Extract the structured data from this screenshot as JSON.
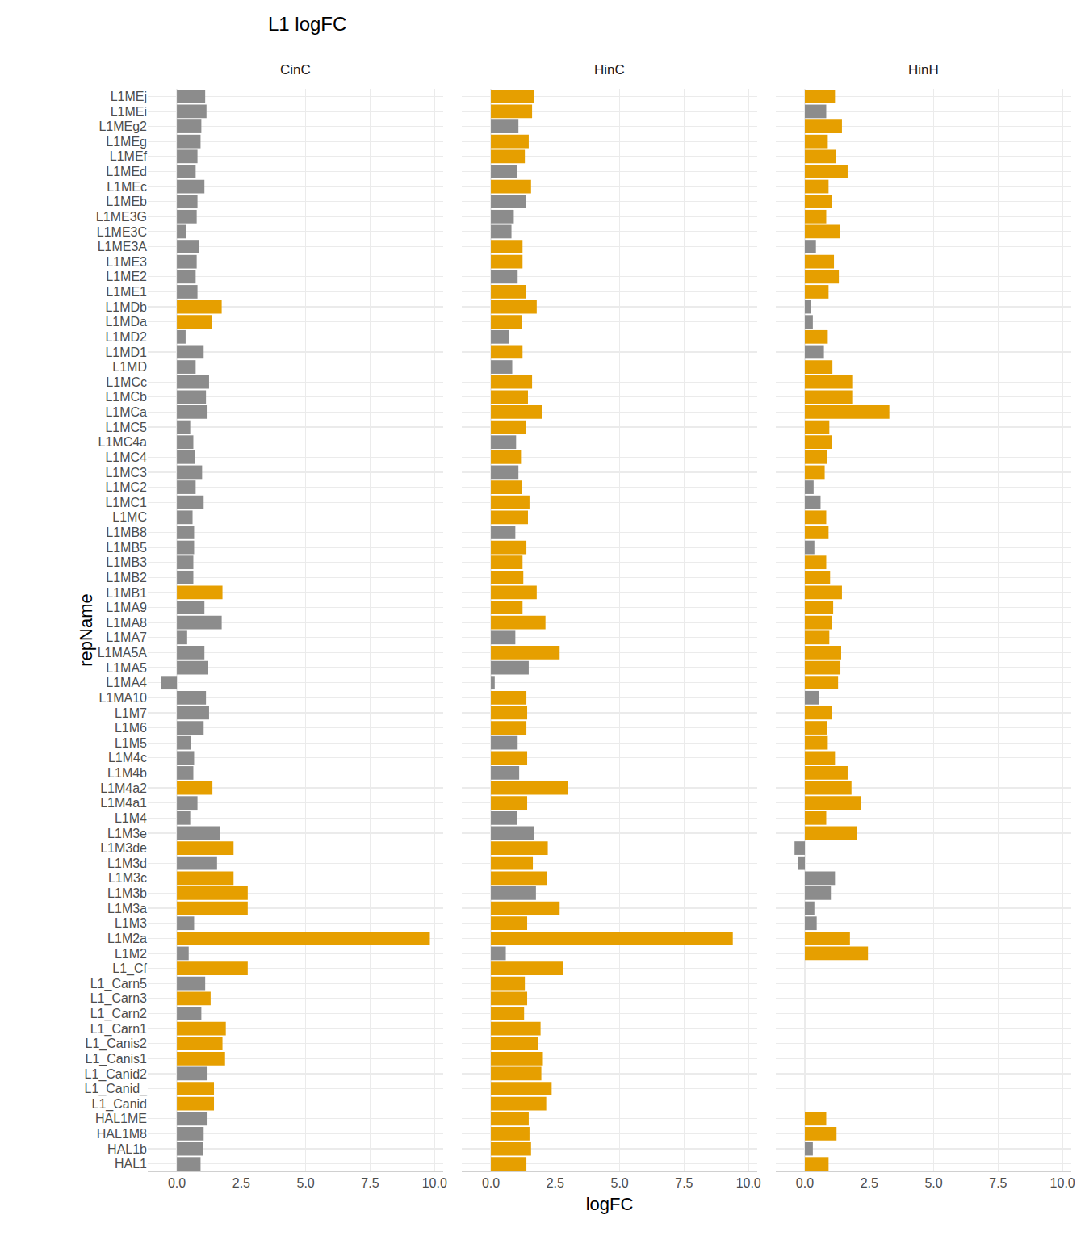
{
  "title": "L1 logFC",
  "x_label": "logFC",
  "y_label": "repName",
  "chart_data": [
    {
      "type": "bar",
      "title": "CinC",
      "orientation": "horizontal",
      "grid": true,
      "categories": [
        "L1MEj",
        "L1MEi",
        "L1MEg2",
        "L1MEg",
        "L1MEf",
        "L1MEd",
        "L1MEc",
        "L1MEb",
        "L1ME3G",
        "L1ME3C",
        "L1ME3A",
        "L1ME3",
        "L1ME2",
        "L1ME1",
        "L1MDb",
        "L1MDa",
        "L1MD2",
        "L1MD1",
        "L1MD",
        "L1MCc",
        "L1MCb",
        "L1MCa",
        "L1MC5",
        "L1MC4a",
        "L1MC4",
        "L1MC3",
        "L1MC2",
        "L1MC1",
        "L1MC",
        "L1MB8",
        "L1MB5",
        "L1MB3",
        "L1MB2",
        "L1MB1",
        "L1MA9",
        "L1MA8",
        "L1MA7",
        "L1MA5A",
        "L1MA5",
        "L1MA4",
        "L1MA10",
        "L1M7",
        "L1M6",
        "L1M5",
        "L1M4c",
        "L1M4b",
        "L1M4a2",
        "L1M4a1",
        "L1M4",
        "L1M3e",
        "L1M3de",
        "L1M3d",
        "L1M3c",
        "L1M3b",
        "L1M3a",
        "L1M3",
        "L1M2a",
        "L1M2",
        "L1_Cf",
        "L1_Carn5",
        "L1_Carn3",
        "L1_Carn2",
        "L1_Carn1",
        "L1_Canis2",
        "L1_Canis1",
        "L1_Canid2",
        "L1_Canid_",
        "L1_Canid",
        "HAL1ME",
        "HAL1M8",
        "HAL1b",
        "HAL1"
      ],
      "values": [
        1.1,
        1.15,
        0.95,
        0.92,
        0.8,
        0.73,
        1.07,
        0.8,
        0.77,
        0.37,
        0.86,
        0.77,
        0.73,
        0.8,
        1.74,
        1.35,
        0.34,
        1.04,
        0.73,
        1.25,
        1.13,
        1.19,
        0.52,
        0.64,
        0.7,
        0.98,
        0.73,
        1.04,
        0.61,
        0.67,
        0.67,
        0.64,
        0.64,
        1.77,
        1.07,
        1.74,
        0.4,
        1.07,
        1.22,
        -0.61,
        1.13,
        1.25,
        1.04,
        0.55,
        0.67,
        0.64,
        1.38,
        0.8,
        0.52,
        1.68,
        2.2,
        1.56,
        2.2,
        2.75,
        2.75,
        0.67,
        9.82,
        0.46,
        2.75,
        1.1,
        1.31,
        0.95,
        1.9,
        1.77,
        1.87,
        1.19,
        1.44,
        1.44,
        1.19,
        1.04,
        1.01,
        0.92
      ],
      "colors": [
        "#8C8C8C",
        "#8C8C8C",
        "#8C8C8C",
        "#8C8C8C",
        "#8C8C8C",
        "#8C8C8C",
        "#8C8C8C",
        "#8C8C8C",
        "#8C8C8C",
        "#8C8C8C",
        "#8C8C8C",
        "#8C8C8C",
        "#8C8C8C",
        "#8C8C8C",
        "#E69F00",
        "#E69F00",
        "#8C8C8C",
        "#8C8C8C",
        "#8C8C8C",
        "#8C8C8C",
        "#8C8C8C",
        "#8C8C8C",
        "#8C8C8C",
        "#8C8C8C",
        "#8C8C8C",
        "#8C8C8C",
        "#8C8C8C",
        "#8C8C8C",
        "#8C8C8C",
        "#8C8C8C",
        "#8C8C8C",
        "#8C8C8C",
        "#8C8C8C",
        "#E69F00",
        "#8C8C8C",
        "#8C8C8C",
        "#8C8C8C",
        "#8C8C8C",
        "#8C8C8C",
        "#8C8C8C",
        "#8C8C8C",
        "#8C8C8C",
        "#8C8C8C",
        "#8C8C8C",
        "#8C8C8C",
        "#8C8C8C",
        "#E69F00",
        "#8C8C8C",
        "#8C8C8C",
        "#8C8C8C",
        "#E69F00",
        "#8C8C8C",
        "#E69F00",
        "#E69F00",
        "#E69F00",
        "#8C8C8C",
        "#E69F00",
        "#8C8C8C",
        "#E69F00",
        "#8C8C8C",
        "#E69F00",
        "#8C8C8C",
        "#E69F00",
        "#E69F00",
        "#E69F00",
        "#8C8C8C",
        "#E69F00",
        "#E69F00",
        "#8C8C8C",
        "#8C8C8C",
        "#8C8C8C",
        "#8C8C8C"
      ],
      "xlim": [
        -1.13,
        10.34
      ],
      "xticks": [
        {
          "value": 0,
          "label": "0.0"
        },
        2.5,
        {
          "value": 5,
          "label": "5.0"
        },
        7.5,
        {
          "value": 10,
          "label": "10.0"
        }
      ]
    },
    {
      "type": "bar",
      "title": "HinC",
      "orientation": "horizontal",
      "grid": true,
      "categories": [
        "L1MEj",
        "L1MEi",
        "L1MEg2",
        "L1MEg",
        "L1MEf",
        "L1MEd",
        "L1MEc",
        "L1MEb",
        "L1ME3G",
        "L1ME3C",
        "L1ME3A",
        "L1ME3",
        "L1ME2",
        "L1ME1",
        "L1MDb",
        "L1MDa",
        "L1MD2",
        "L1MD1",
        "L1MD",
        "L1MCc",
        "L1MCb",
        "L1MCa",
        "L1MC5",
        "L1MC4a",
        "L1MC4",
        "L1MC3",
        "L1MC2",
        "L1MC1",
        "L1MC",
        "L1MB8",
        "L1MB5",
        "L1MB3",
        "L1MB2",
        "L1MB1",
        "L1MA9",
        "L1MA8",
        "L1MA7",
        "L1MA5A",
        "L1MA5",
        "L1MA4",
        "L1MA10",
        "L1M7",
        "L1M6",
        "L1M5",
        "L1M4c",
        "L1M4b",
        "L1M4a2",
        "L1M4a1",
        "L1M4",
        "L1M3e",
        "L1M3de",
        "L1M3d",
        "L1M3c",
        "L1M3b",
        "L1M3a",
        "L1M3",
        "L1M2a",
        "L1M2",
        "L1_Cf",
        "L1_Carn5",
        "L1_Carn3",
        "L1_Carn2",
        "L1_Carn1",
        "L1_Canis2",
        "L1_Canis1",
        "L1_Canid2",
        "L1_Canid_",
        "L1_Canid",
        "HAL1ME",
        "HAL1M8",
        "HAL1b",
        "HAL1"
      ],
      "values": [
        1.69,
        1.6,
        1.07,
        1.47,
        1.32,
        1.01,
        1.56,
        1.35,
        0.89,
        0.8,
        1.23,
        1.23,
        1.04,
        1.35,
        1.78,
        1.2,
        0.71,
        1.23,
        0.83,
        1.6,
        1.44,
        1.99,
        1.35,
        0.98,
        1.17,
        1.07,
        1.2,
        1.5,
        1.44,
        0.95,
        1.38,
        1.23,
        1.26,
        1.78,
        1.23,
        2.12,
        0.95,
        2.67,
        1.47,
        0.15,
        1.38,
        1.41,
        1.38,
        1.04,
        1.41,
        1.1,
        3.0,
        1.41,
        1.01,
        1.66,
        2.21,
        1.63,
        2.18,
        1.75,
        2.67,
        1.41,
        9.39,
        0.58,
        2.79,
        1.32,
        1.41,
        1.29,
        1.93,
        1.84,
        2.02,
        1.96,
        2.36,
        2.15,
        1.47,
        1.5,
        1.56,
        1.38
      ],
      "colors": [
        "#E69F00",
        "#E69F00",
        "#8C8C8C",
        "#E69F00",
        "#E69F00",
        "#8C8C8C",
        "#E69F00",
        "#8C8C8C",
        "#8C8C8C",
        "#8C8C8C",
        "#E69F00",
        "#E69F00",
        "#8C8C8C",
        "#E69F00",
        "#E69F00",
        "#E69F00",
        "#8C8C8C",
        "#E69F00",
        "#8C8C8C",
        "#E69F00",
        "#E69F00",
        "#E69F00",
        "#E69F00",
        "#8C8C8C",
        "#E69F00",
        "#8C8C8C",
        "#E69F00",
        "#E69F00",
        "#E69F00",
        "#8C8C8C",
        "#E69F00",
        "#E69F00",
        "#E69F00",
        "#E69F00",
        "#E69F00",
        "#E69F00",
        "#8C8C8C",
        "#E69F00",
        "#8C8C8C",
        "#8C8C8C",
        "#E69F00",
        "#E69F00",
        "#E69F00",
        "#8C8C8C",
        "#E69F00",
        "#8C8C8C",
        "#E69F00",
        "#E69F00",
        "#8C8C8C",
        "#8C8C8C",
        "#E69F00",
        "#E69F00",
        "#E69F00",
        "#8C8C8C",
        "#E69F00",
        "#E69F00",
        "#E69F00",
        "#8C8C8C",
        "#E69F00",
        "#E69F00",
        "#E69F00",
        "#E69F00",
        "#E69F00",
        "#E69F00",
        "#E69F00",
        "#E69F00",
        "#E69F00",
        "#E69F00",
        "#E69F00",
        "#E69F00",
        "#E69F00",
        "#E69F00"
      ],
      "xlim": [
        -1.13,
        10.34
      ],
      "xticks": [
        {
          "value": 0,
          "label": "0.0"
        },
        2.5,
        {
          "value": 5,
          "label": "5.0"
        },
        7.5,
        {
          "value": 10,
          "label": "10.0"
        }
      ]
    },
    {
      "type": "bar",
      "title": "HinH",
      "orientation": "horizontal",
      "grid": true,
      "categories": [
        "L1MEj",
        "L1MEi",
        "L1MEg2",
        "L1MEg",
        "L1MEf",
        "L1MEd",
        "L1MEc",
        "L1MEb",
        "L1ME3G",
        "L1ME3C",
        "L1ME3A",
        "L1ME3",
        "L1ME2",
        "L1ME1",
        "L1MDb",
        "L1MDa",
        "L1MD2",
        "L1MD1",
        "L1MD",
        "L1MCc",
        "L1MCb",
        "L1MCa",
        "L1MC5",
        "L1MC4a",
        "L1MC4",
        "L1MC3",
        "L1MC2",
        "L1MC1",
        "L1MC",
        "L1MB8",
        "L1MB5",
        "L1MB3",
        "L1MB2",
        "L1MB1",
        "L1MA9",
        "L1MA8",
        "L1MA7",
        "L1MA5A",
        "L1MA5",
        "L1MA4",
        "L1MA10",
        "L1M7",
        "L1M6",
        "L1M5",
        "L1M4c",
        "L1M4b",
        "L1M4a2",
        "L1M4a1",
        "L1M4",
        "L1M3e",
        "L1M3de",
        "L1M3d",
        "L1M3c",
        "L1M3b",
        "L1M3a",
        "L1M3",
        "L1M2a",
        "L1M2",
        "L1_Cf",
        "L1_Carn5",
        "L1_Carn3",
        "L1_Carn2",
        "L1_Carn1",
        "L1_Canis2",
        "L1_Canis1",
        "L1_Canid2",
        "L1_Canid_",
        "L1_Canid",
        "HAL1ME",
        "HAL1M8",
        "HAL1b",
        "HAL1"
      ],
      "values": [
        1.17,
        0.83,
        1.44,
        0.89,
        1.2,
        1.66,
        0.92,
        1.04,
        0.83,
        1.35,
        0.43,
        1.13,
        1.32,
        0.92,
        0.25,
        0.31,
        0.89,
        0.74,
        1.07,
        1.87,
        1.87,
        3.28,
        0.95,
        1.04,
        0.86,
        0.77,
        0.34,
        0.61,
        0.83,
        0.92,
        0.37,
        0.83,
        0.98,
        1.44,
        1.1,
        1.04,
        0.95,
        1.41,
        1.38,
        1.29,
        0.55,
        1.04,
        0.86,
        0.89,
        1.17,
        1.66,
        1.81,
        2.18,
        0.83,
        2.02,
        -0.4,
        -0.25,
        1.17,
        1.01,
        0.37,
        0.46,
        1.75,
        2.45,
        null,
        null,
        null,
        null,
        null,
        null,
        null,
        null,
        null,
        null,
        0.83,
        1.23,
        0.31,
        0.92
      ],
      "colors": [
        "#E69F00",
        "#8C8C8C",
        "#E69F00",
        "#E69F00",
        "#E69F00",
        "#E69F00",
        "#E69F00",
        "#E69F00",
        "#E69F00",
        "#E69F00",
        "#8C8C8C",
        "#E69F00",
        "#E69F00",
        "#E69F00",
        "#8C8C8C",
        "#8C8C8C",
        "#E69F00",
        "#8C8C8C",
        "#E69F00",
        "#E69F00",
        "#E69F00",
        "#E69F00",
        "#E69F00",
        "#E69F00",
        "#E69F00",
        "#E69F00",
        "#8C8C8C",
        "#8C8C8C",
        "#E69F00",
        "#E69F00",
        "#8C8C8C",
        "#E69F00",
        "#E69F00",
        "#E69F00",
        "#E69F00",
        "#E69F00",
        "#E69F00",
        "#E69F00",
        "#E69F00",
        "#E69F00",
        "#8C8C8C",
        "#E69F00",
        "#E69F00",
        "#E69F00",
        "#E69F00",
        "#E69F00",
        "#E69F00",
        "#E69F00",
        "#E69F00",
        "#E69F00",
        "#8C8C8C",
        "#8C8C8C",
        "#8C8C8C",
        "#8C8C8C",
        "#8C8C8C",
        "#8C8C8C",
        "#E69F00",
        "#E69F00",
        null,
        null,
        null,
        null,
        null,
        null,
        null,
        null,
        null,
        null,
        "#E69F00",
        "#E69F00",
        "#8C8C8C",
        "#E69F00"
      ],
      "xlim": [
        -1.13,
        10.34
      ],
      "xticks": [
        {
          "value": 0,
          "label": "0.0"
        },
        2.5,
        {
          "value": 5,
          "label": "5.0"
        },
        7.5,
        {
          "value": 10,
          "label": "10.0"
        }
      ]
    }
  ]
}
